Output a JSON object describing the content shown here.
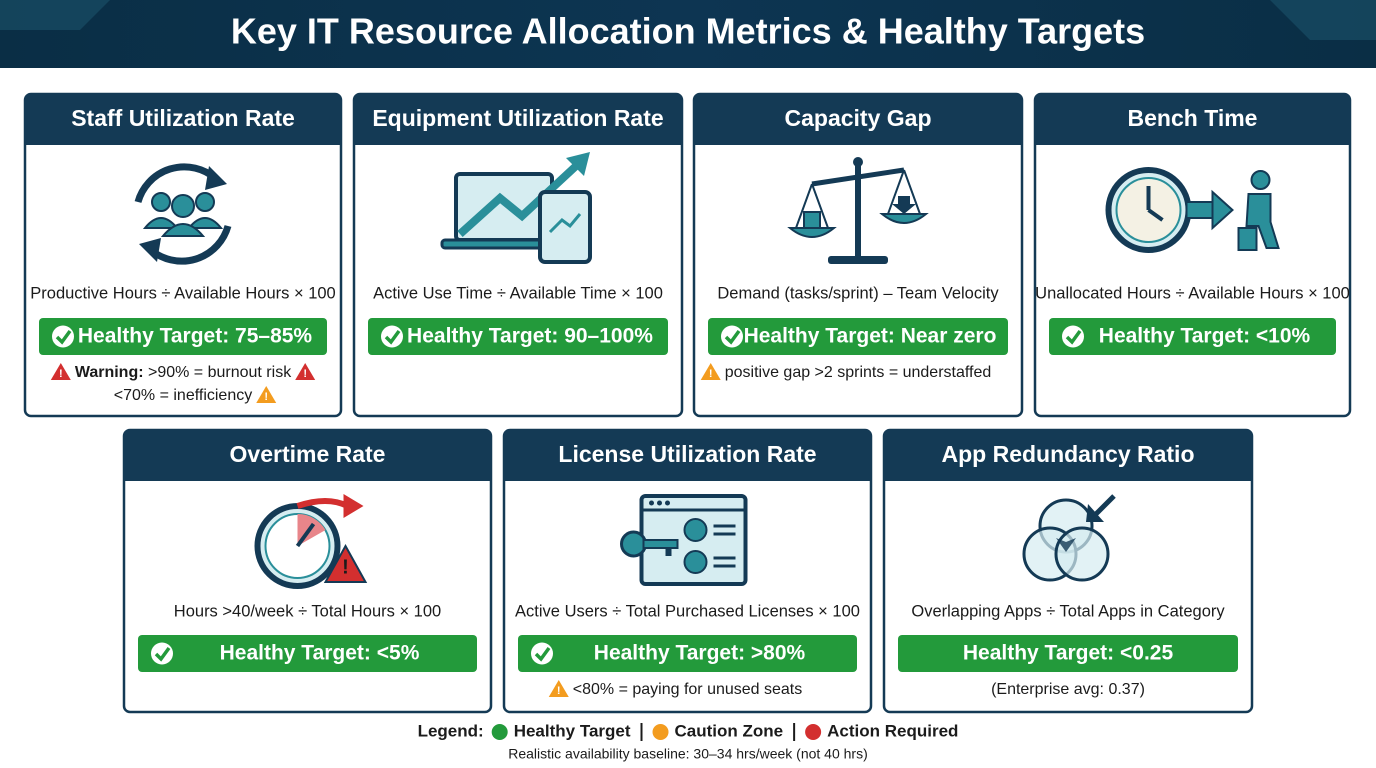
{
  "header": {
    "title": "Key IT Resource Allocation Metrics & Healthy Targets"
  },
  "cards": [
    {
      "title": "Staff Utilization Rate",
      "formula": "Productive Hours ÷ Available Hours × 100",
      "target": "Healthy Target: 75–85%",
      "notes": [
        {
          "label": "Warning:",
          "text": ">90% = burnout risk",
          "color": "#d32f2f"
        },
        {
          "text": "<70% = inefficiency",
          "color": "#f39c1f"
        }
      ]
    },
    {
      "title": "Equipment Utilization Rate",
      "formula": "Active Use Time ÷ Available Time × 100",
      "target": "Healthy Target: 90–100%",
      "notes": []
    },
    {
      "title": "Capacity Gap",
      "formula": "Demand (tasks/sprint) – Team Velocity",
      "target": "Healthy Target: Near zero",
      "notes": [
        {
          "text": "positive gap >2 sprints = understaffed",
          "color": "#f39c1f"
        }
      ]
    },
    {
      "title": "Bench Time",
      "formula": "Unallocated Hours ÷ Available Hours × 100",
      "target": "Healthy Target: <10%",
      "notes": []
    },
    {
      "title": "Overtime Rate",
      "formula": "Hours >40/week ÷ Total Hours × 100",
      "target": "Healthy Target: <5%",
      "notes": []
    },
    {
      "title": "License Utilization Rate",
      "formula": "Active Users ÷ Total Purchased Licenses × 100",
      "target": "Healthy Target: >80%",
      "notes": [
        {
          "text": "<80% = paying for unused seats",
          "color": "#f39c1f"
        }
      ]
    },
    {
      "title": "App Redundancy Ratio",
      "formula": "Overlapping Apps ÷ Total Apps in Category",
      "target": "Healthy Target: <0.25",
      "notes": [
        {
          "text": "(Enterprise avg: 0.37)"
        }
      ]
    }
  ],
  "legend": {
    "label": "Legend:",
    "items": [
      {
        "text": "Healthy Target",
        "color": "#239a3b"
      },
      {
        "text": "Caution Zone",
        "color": "#f39c1f"
      },
      {
        "text": "Action Required",
        "color": "#d32f2f"
      }
    ]
  },
  "footer": {
    "text": "Realistic availability baseline: 30–34 hrs/week (not 40 hrs)"
  }
}
